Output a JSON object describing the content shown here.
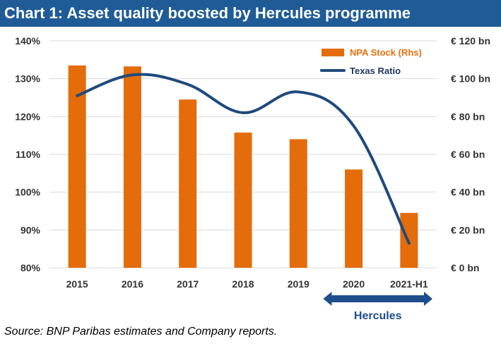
{
  "title": "Chart 1: Asset quality boosted by Hercules programme",
  "source": "Source: BNP Paribas estimates and Company reports.",
  "colors": {
    "title_bg": "#1f5b97",
    "bars": "#e46c0a",
    "line": "#1f4a7c",
    "annotation": "#1f4e8c",
    "gridline": "#d9d9d9"
  },
  "annotation": {
    "label": "Hercules",
    "spans": [
      "2020",
      "2021-H1"
    ],
    "style": "double-arrow"
  },
  "chart_data": {
    "type": "bar",
    "categories": [
      "2015",
      "2016",
      "2017",
      "2018",
      "2019",
      "2020",
      "2021-H1"
    ],
    "grid": "horizontal",
    "legend_placement": "top-right",
    "y_left": {
      "ylim": [
        80,
        140
      ],
      "ticks": [
        80,
        90,
        100,
        110,
        120,
        130,
        140
      ],
      "tick_labels": [
        "80%",
        "90%",
        "100%",
        "110%",
        "120%",
        "130%",
        "140%"
      ]
    },
    "y_right": {
      "ylim": [
        0,
        120
      ],
      "ticks": [
        0,
        20,
        40,
        60,
        80,
        100,
        120
      ],
      "tick_labels": [
        "€ 0 bn",
        "€ 20 bn",
        "€ 40 bn",
        "€ 60 bn",
        "€ 80 bn",
        "€ 100 bn",
        "€ 120 bn"
      ]
    },
    "series": [
      {
        "name": "NPA Stock (Rhs)",
        "type": "bar",
        "axis": "right",
        "values": [
          107,
          106.5,
          89,
          71.5,
          68,
          52,
          29
        ]
      },
      {
        "name": "Texas Ratio",
        "type": "line",
        "axis": "left",
        "values": [
          125.5,
          131,
          128.5,
          121,
          126.5,
          117.5,
          86.5
        ]
      }
    ]
  }
}
